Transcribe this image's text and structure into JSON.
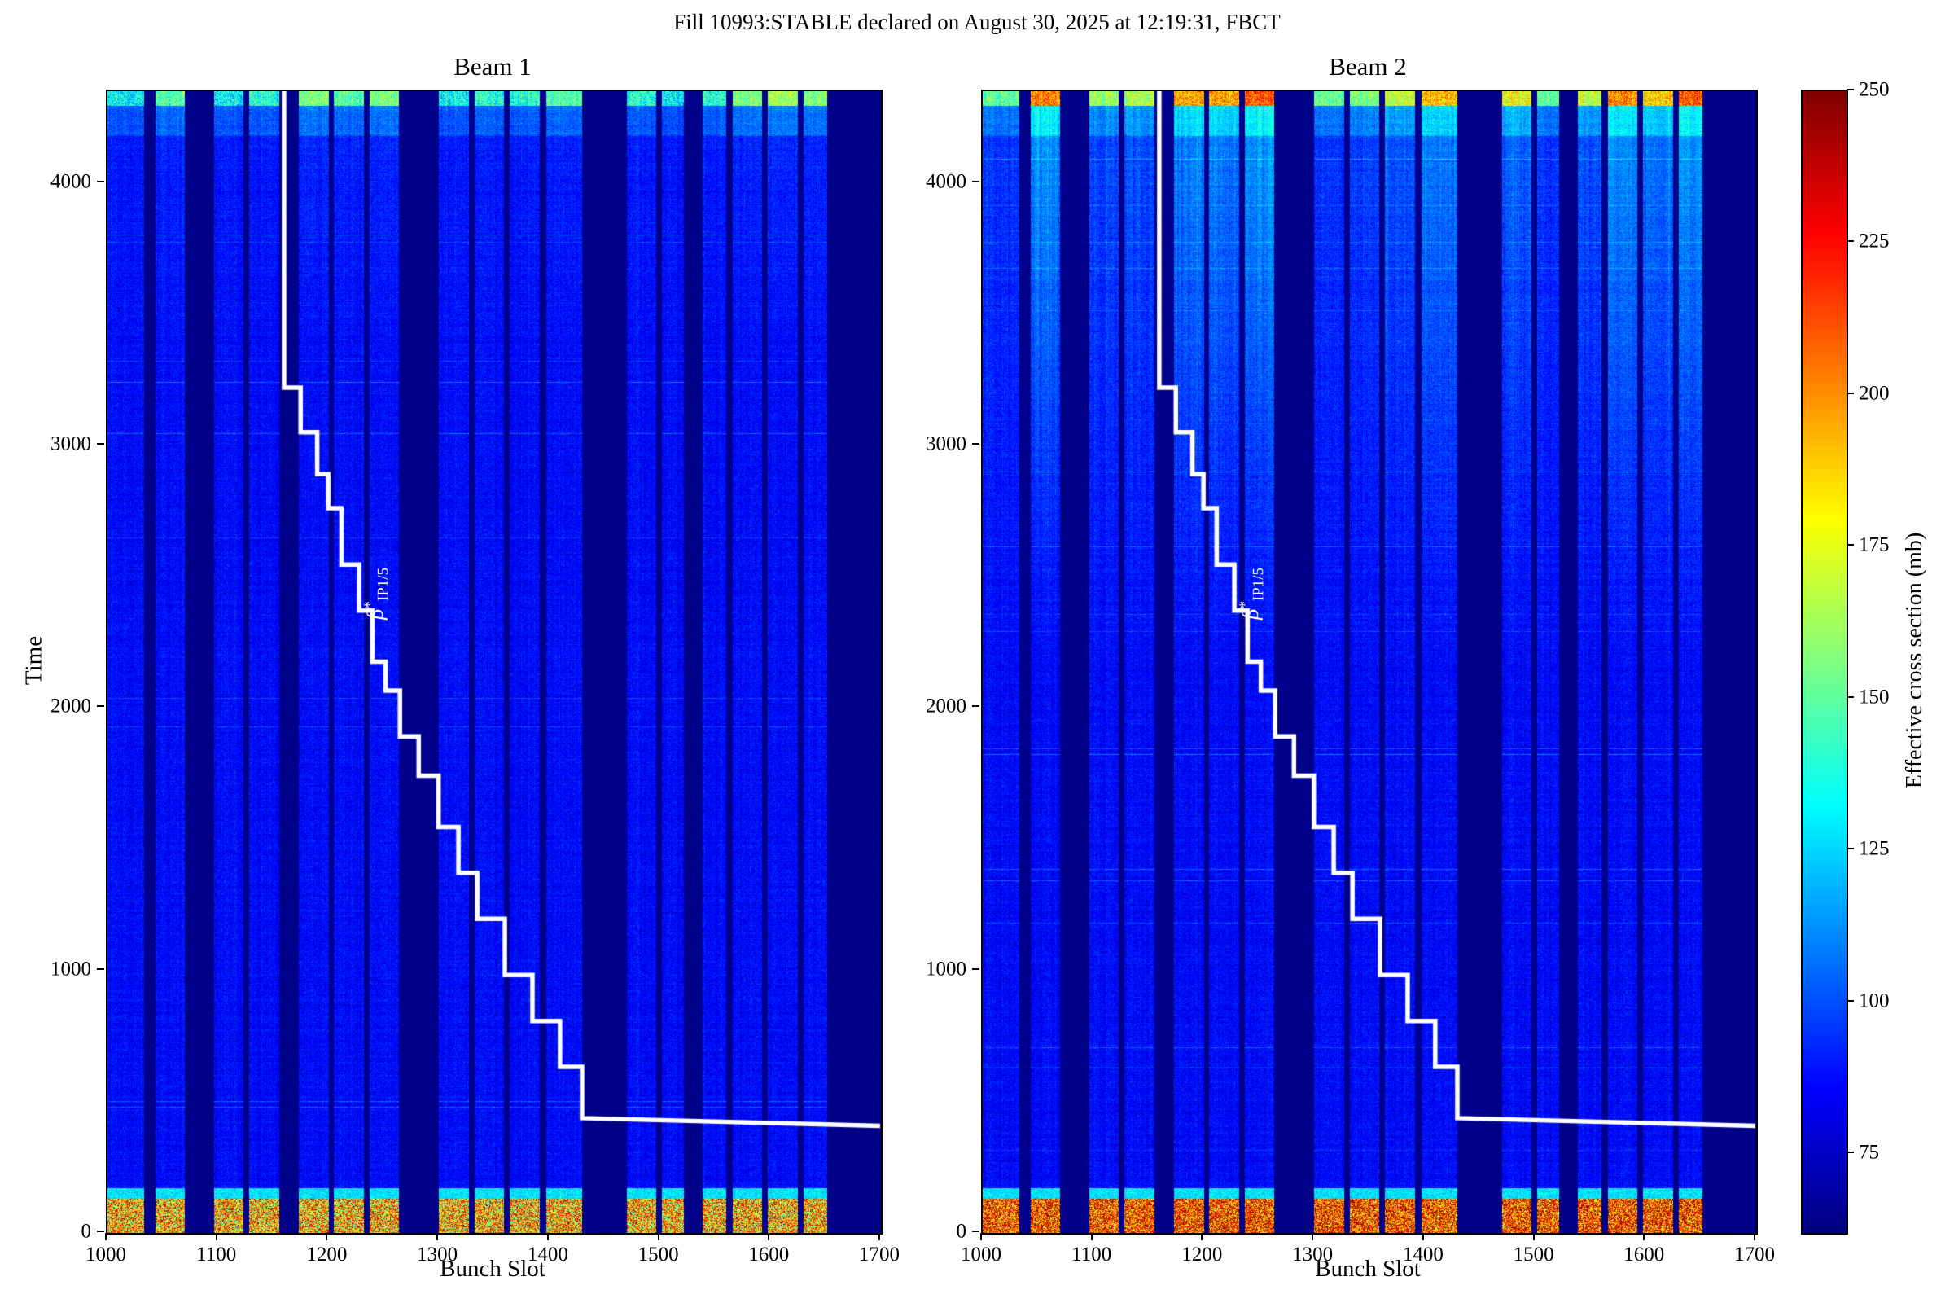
{
  "chart_data": {
    "type": "heatmap",
    "suptitle": "Fill 10993:STABLE declared on August 30, 2025 at 12:19:31, FBCT",
    "colormap": "jet",
    "xlabel": "Bunch Slot",
    "ylabel": "Time",
    "x_range": [
      1000,
      1700
    ],
    "x_ticks": [
      1000,
      1100,
      1200,
      1300,
      1400,
      1500,
      1600,
      1700
    ],
    "y_range": [
      0,
      4350
    ],
    "y_ticks": [
      0,
      1000,
      2000,
      3000,
      4000
    ],
    "grid": false,
    "colorbar": {
      "label": "Effective cross section (mb)",
      "ticks": [
        75,
        100,
        125,
        150,
        175,
        200,
        225,
        250
      ],
      "vmin": 62,
      "vmax": 250
    },
    "background_value": 64,
    "bunch_trains": [
      [
        1000,
        1033
      ],
      [
        1043,
        1070
      ],
      [
        1096,
        1123
      ],
      [
        1128,
        1155
      ],
      [
        1173,
        1200
      ],
      [
        1205,
        1232
      ],
      [
        1237,
        1264
      ],
      [
        1300,
        1327
      ],
      [
        1332,
        1359
      ],
      [
        1364,
        1391
      ],
      [
        1397,
        1430
      ],
      [
        1470,
        1497
      ],
      [
        1502,
        1522
      ],
      [
        1539,
        1560
      ],
      [
        1566,
        1593
      ],
      [
        1598,
        1625
      ],
      [
        1630,
        1652
      ]
    ],
    "beams": [
      {
        "title": "Beam 1",
        "base_value": 86,
        "noise": 9,
        "injection_value": 190,
        "injection_spread": 55,
        "injection_time_max": 130,
        "transition_value": 128,
        "top_band_value": 148,
        "streak_gain": 12,
        "streak_start_time": 3300,
        "train_streaks": [
          0.3,
          0.5,
          0.3,
          0.4,
          0.6,
          0.5,
          0.6,
          0.3,
          0.4,
          0.4,
          0.5,
          0.4,
          0.3,
          0.4,
          0.6,
          0.7,
          0.6
        ],
        "seed": 12345
      },
      {
        "title": "Beam 2",
        "base_value": 86,
        "noise": 9,
        "injection_value": 212,
        "injection_spread": 48,
        "injection_time_max": 130,
        "transition_value": 128,
        "top_band_value": 165,
        "streak_gain": 30,
        "streak_start_time": 2200,
        "train_streaks": [
          0.35,
          0.95,
          0.45,
          0.5,
          0.85,
          0.85,
          1.0,
          0.35,
          0.4,
          0.55,
          0.8,
          0.65,
          0.35,
          0.55,
          0.9,
          0.75,
          1.0
        ],
        "seed": 67890
      }
    ],
    "beta_star": {
      "label": {
        "symbol": "β",
        "sup": "*",
        "sub": "IP1/5"
      },
      "color": "#ffffff",
      "annotation": {
        "slot": 1245,
        "time": 2430
      },
      "points": [
        [
          1160,
          4350
        ],
        [
          1160,
          3220
        ],
        [
          1175,
          3220
        ],
        [
          1175,
          3050
        ],
        [
          1190,
          3050
        ],
        [
          1190,
          2890
        ],
        [
          1200,
          2890
        ],
        [
          1200,
          2760
        ],
        [
          1212,
          2760
        ],
        [
          1212,
          2545
        ],
        [
          1228,
          2545
        ],
        [
          1228,
          2370
        ],
        [
          1240,
          2370
        ],
        [
          1240,
          2175
        ],
        [
          1252,
          2175
        ],
        [
          1252,
          2065
        ],
        [
          1265,
          2065
        ],
        [
          1265,
          1890
        ],
        [
          1282,
          1890
        ],
        [
          1282,
          1740
        ],
        [
          1300,
          1740
        ],
        [
          1300,
          1545
        ],
        [
          1318,
          1545
        ],
        [
          1318,
          1370
        ],
        [
          1335,
          1370
        ],
        [
          1335,
          1195
        ],
        [
          1360,
          1195
        ],
        [
          1360,
          980
        ],
        [
          1385,
          980
        ],
        [
          1385,
          805
        ],
        [
          1410,
          805
        ],
        [
          1410,
          630
        ],
        [
          1430,
          630
        ],
        [
          1430,
          435
        ],
        [
          1700,
          405
        ]
      ]
    }
  }
}
